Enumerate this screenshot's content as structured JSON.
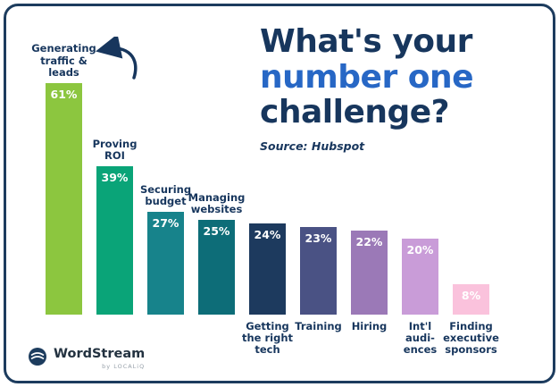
{
  "header": {
    "title_line1": "What's your",
    "title_line2": "number one",
    "title_line3": "challenge?",
    "source": "Source: Hubspot"
  },
  "footer": {
    "brand": "WordStream",
    "brand_sub": "by LOCALiQ"
  },
  "colors": {
    "border": "#1d3c5e",
    "title_primary": "#17365d",
    "title_accent": "#2767c5",
    "value_label_text": "#ffffff"
  },
  "chart_data": {
    "type": "bar",
    "title": "What's your number one challenge?",
    "source": "Source: Hubspot",
    "xlabel": "",
    "ylabel": "",
    "ylim": [
      0,
      65
    ],
    "value_unit": "%",
    "grid": false,
    "legend": "none",
    "categories": [
      "Generating traffic & leads",
      "Proving ROI",
      "Securing budget",
      "Managing websites",
      "Getting the right tech",
      "Training",
      "Hiring",
      "Int'l audiences",
      "Finding executive sponsors"
    ],
    "values": [
      61,
      39,
      27,
      25,
      24,
      23,
      22,
      20,
      8
    ],
    "bars": [
      {
        "label": "Generating\ntraffic &\nleads",
        "value": 61,
        "value_label": "61%",
        "color": "#8cc63f",
        "label_position": "above"
      },
      {
        "label": "Proving\nROI",
        "value": 39,
        "value_label": "39%",
        "color": "#0aa478",
        "label_position": "above"
      },
      {
        "label": "Securing\nbudget",
        "value": 27,
        "value_label": "27%",
        "color": "#17838b",
        "label_position": "above"
      },
      {
        "label": "Managing\nwebsites",
        "value": 25,
        "value_label": "25%",
        "color": "#0d6d78",
        "label_position": "above"
      },
      {
        "label": "Getting\nthe right\ntech",
        "value": 24,
        "value_label": "24%",
        "color": "#1d3a5e",
        "label_position": "below"
      },
      {
        "label": "Training",
        "value": 23,
        "value_label": "23%",
        "color": "#4a5284",
        "label_position": "below"
      },
      {
        "label": "Hiring",
        "value": 22,
        "value_label": "22%",
        "color": "#9b79b7",
        "label_position": "below"
      },
      {
        "label": "Int'l\naudi-\nences",
        "value": 20,
        "value_label": "20%",
        "color": "#c99cd8",
        "label_position": "below"
      },
      {
        "label": "Finding\nexecutive\nsponsors",
        "value": 8,
        "value_label": "8%",
        "color": "#fac2dc",
        "label_position": "below"
      }
    ]
  }
}
